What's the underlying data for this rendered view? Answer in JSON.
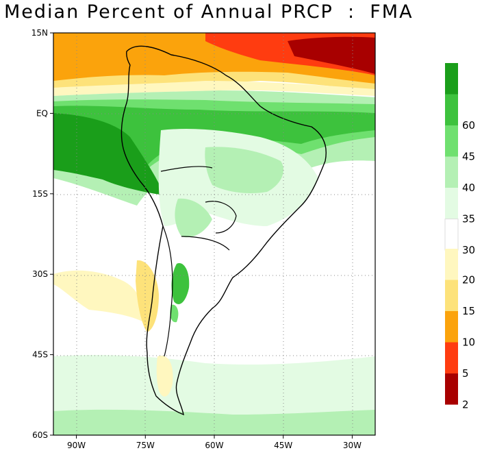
{
  "title": "Median Percent of Annual PRCP  :  FMA",
  "map": {
    "lat_range": [
      -60,
      15
    ],
    "lon_range": [
      -95,
      -25
    ],
    "lat_ticks": [
      {
        "lat": 15,
        "label": "15N"
      },
      {
        "lat": 0,
        "label": "EQ"
      },
      {
        "lat": -15,
        "label": "15S"
      },
      {
        "lat": -30,
        "label": "30S"
      },
      {
        "lat": -45,
        "label": "45S"
      },
      {
        "lat": -60,
        "label": "60S"
      }
    ],
    "lon_ticks": [
      {
        "lon": -90,
        "label": "90W"
      },
      {
        "lon": -75,
        "label": "75W"
      },
      {
        "lon": -60,
        "label": "60W"
      },
      {
        "lon": -45,
        "label": "45W"
      },
      {
        "lon": -30,
        "label": "30W"
      }
    ],
    "gridlines": "dotted"
  },
  "colorbar": {
    "upper": [
      {
        "label": "",
        "color": "#1a9e1a"
      },
      {
        "label": "60",
        "color": "#3dc23d"
      },
      {
        "label": "45",
        "color": "#6fe06f"
      },
      {
        "label": "40",
        "color": "#b4f0b4"
      },
      {
        "label": "35",
        "color": "#e3fbe3"
      },
      {
        "label": "30",
        "color": "#ffffff"
      }
    ],
    "lower": [
      {
        "label": "20",
        "color": "#fff7bf"
      },
      {
        "label": "15",
        "color": "#fde27a"
      },
      {
        "label": "10",
        "color": "#fba30c"
      },
      {
        "label": "5",
        "color": "#ff3c10"
      },
      {
        "label": "2",
        "color": "#a80000"
      }
    ]
  }
}
